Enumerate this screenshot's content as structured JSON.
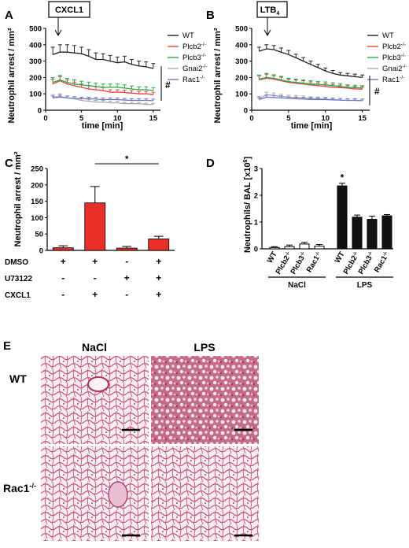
{
  "panels": {
    "A": {
      "letter": "A",
      "stimulus": "CXCL1",
      "ylabel": "Neutrophil arrest / mm²",
      "xlabel": "time [min]",
      "xticks": [
        0,
        5,
        10,
        15
      ],
      "yticks": [
        0,
        100,
        200,
        300,
        400,
        500
      ],
      "significance": "#",
      "chart_data": {
        "type": "line",
        "ylim": [
          0,
          500
        ],
        "xlim": [
          0,
          16
        ],
        "x": [
          1,
          2,
          3,
          4,
          5,
          6,
          7,
          8,
          9,
          10,
          11,
          12,
          13,
          14,
          15
        ],
        "series": [
          {
            "name": "WT",
            "color": "#222222",
            "values": [
              340,
              355,
              355,
              350,
              345,
              330,
              310,
              310,
              300,
              290,
              295,
              280,
              270,
              265,
              255
            ],
            "err": [
              45,
              45,
              45,
              45,
              40,
              40,
              40,
              35,
              35,
              35,
              35,
              30,
              30,
              30,
              30
            ]
          },
          {
            "name": "Plcb2",
            "sup": "-/-",
            "color": "#e8433a",
            "values": [
              160,
              180,
              160,
              150,
              140,
              130,
              125,
              120,
              110,
              110,
              108,
              105,
              100,
              100,
              95
            ],
            "err": [
              30,
              25,
              25,
              22,
              20,
              20,
              18,
              18,
              15,
              15,
              15,
              15,
              15,
              15,
              15
            ]
          },
          {
            "name": "Plcb3",
            "sup": "-/-",
            "color": "#2aa84a",
            "values": [
              170,
              185,
              170,
              160,
              155,
              150,
              145,
              140,
              140,
              140,
              135,
              130,
              125,
              125,
              120
            ],
            "err": [
              30,
              28,
              25,
              25,
              22,
              22,
              20,
              20,
              20,
              20,
              20,
              18,
              18,
              18,
              18
            ]
          },
          {
            "name": "Gnai2",
            "sup": "-/-",
            "color": "#aaaaaa",
            "values": [
              80,
              85,
              75,
              70,
              60,
              55,
              50,
              50,
              45,
              45,
              40,
              40,
              40,
              35,
              35
            ],
            "err": [
              15,
              15,
              12,
              12,
              12,
              10,
              10,
              10,
              10,
              10,
              8,
              8,
              8,
              8,
              8
            ]
          },
          {
            "name": "Rac1",
            "sup": "-/-",
            "color": "#6f76c8",
            "values": [
              75,
              80,
              75,
              72,
              70,
              70,
              68,
              65,
              65,
              65,
              62,
              60,
              60,
              60,
              58
            ],
            "err": [
              12,
              12,
              12,
              10,
              10,
              10,
              10,
              10,
              10,
              10,
              10,
              10,
              10,
              10,
              10
            ]
          }
        ]
      }
    },
    "B": {
      "letter": "B",
      "stimulus": "LTB",
      "stimulus_sub": "4",
      "ylabel": "Neutrophil arrest / mm²",
      "xlabel": "time [min]",
      "xticks": [
        0,
        5,
        10,
        15
      ],
      "yticks": [
        0,
        100,
        200,
        300,
        400,
        500
      ],
      "significance": "#",
      "chart_data": {
        "type": "line",
        "ylim": [
          0,
          500
        ],
        "xlim": [
          0,
          16
        ],
        "x": [
          1,
          2,
          3,
          4,
          5,
          6,
          7,
          8,
          9,
          10,
          11,
          12,
          13,
          14,
          15
        ],
        "series": [
          {
            "name": "WT",
            "color": "#222222",
            "values": [
              360,
              375,
              370,
              355,
              340,
              320,
              300,
              280,
              260,
              240,
              225,
              215,
              210,
              205,
              200
            ],
            "err": [
              25,
              25,
              25,
              25,
              25,
              22,
              22,
              20,
              20,
              18,
              18,
              15,
              15,
              15,
              15
            ]
          },
          {
            "name": "Plcb2",
            "sup": "-/-",
            "color": "#e8433a",
            "values": [
              185,
              195,
              190,
              180,
              170,
              165,
              160,
              155,
              150,
              145,
              140,
              138,
              135,
              130,
              128
            ],
            "err": [
              25,
              25,
              22,
              22,
              20,
              20,
              20,
              18,
              18,
              18,
              18,
              15,
              15,
              15,
              15
            ]
          },
          {
            "name": "Plcb3",
            "sup": "-/-",
            "color": "#2aa84a",
            "values": [
              190,
              200,
              195,
              185,
              175,
              170,
              165,
              160,
              158,
              155,
              150,
              145,
              140,
              138,
              135
            ],
            "err": [
              25,
              25,
              22,
              22,
              20,
              20,
              20,
              20,
              18,
              18,
              18,
              18,
              15,
              15,
              15
            ]
          },
          {
            "name": "Gnai2",
            "sup": "-/-",
            "color": "#aaaaaa",
            "values": [
              70,
              95,
              90,
              85,
              80,
              78,
              75,
              72,
              70,
              68,
              65,
              62,
              60,
              60,
              58
            ],
            "err": [
              15,
              15,
              15,
              12,
              12,
              12,
              12,
              10,
              10,
              10,
              10,
              10,
              10,
              10,
              10
            ]
          },
          {
            "name": "Rac1",
            "sup": "-/-",
            "color": "#6f76c8",
            "values": [
              65,
              80,
              78,
              75,
              72,
              70,
              68,
              66,
              65,
              65,
              63,
              62,
              60,
              60,
              58
            ],
            "err": [
              12,
              12,
              12,
              12,
              10,
              10,
              10,
              10,
              10,
              10,
              10,
              10,
              10,
              10,
              10
            ]
          }
        ]
      }
    },
    "C": {
      "letter": "C",
      "ylabel": "Neutrophil arrest / mm²",
      "yticks": [
        0,
        50,
        100,
        150,
        200,
        250
      ],
      "significance": "*",
      "conditions": [
        {
          "label": "DMSO",
          "signs": [
            "+",
            "+",
            "-",
            "+"
          ]
        },
        {
          "label": "U73122",
          "signs": [
            "-",
            "-",
            "+",
            "+"
          ]
        },
        {
          "label": "CXCL1",
          "signs": [
            "-",
            "+",
            "-",
            "+"
          ]
        }
      ],
      "chart_data": {
        "type": "bar",
        "ylim": [
          0,
          250
        ],
        "values": [
          8,
          145,
          7,
          35
        ],
        "err": [
          6,
          50,
          5,
          8
        ],
        "color": "#e8302a"
      }
    },
    "D": {
      "letter": "D",
      "ylabel": "Neutrophils/ BAL [x10",
      "ylabel_sup": "6",
      "ylabel_end": "]",
      "yticks": [
        0,
        1,
        2,
        3
      ],
      "significance": "*",
      "groups": [
        "NaCl",
        "LPS"
      ],
      "categories": [
        {
          "name": "WT",
          "sup": ""
        },
        {
          "name": "Plcb2",
          "sup": "-/-"
        },
        {
          "name": "Plcb3",
          "sup": "-/-"
        },
        {
          "name": "Rac1",
          "sup": "-/-"
        }
      ],
      "chart_data": {
        "type": "bar",
        "ylim": [
          0,
          3
        ],
        "series": [
          {
            "name": "NaCl",
            "fill": "#ffffff",
            "values": [
              0.05,
              0.08,
              0.18,
              0.1
            ],
            "err": [
              0.03,
              0.06,
              0.06,
              0.06
            ]
          },
          {
            "name": "LPS",
            "fill": "#111111",
            "values": [
              2.35,
              1.18,
              1.1,
              1.23
            ],
            "err": [
              0.1,
              0.08,
              0.12,
              0.05
            ]
          }
        ]
      }
    },
    "E": {
      "letter": "E",
      "columns": [
        "NaCl",
        "LPS"
      ],
      "rows": [
        {
          "name": "WT",
          "sup": ""
        },
        {
          "name": "Rac1",
          "sup": "-/-"
        }
      ]
    }
  }
}
